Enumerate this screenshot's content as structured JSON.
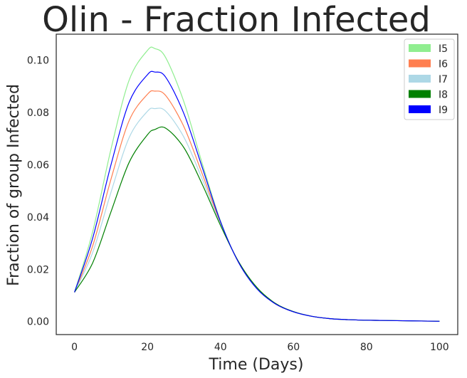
{
  "chart_data": {
    "type": "line",
    "title": "Olin - Fraction Infected",
    "xlabel": "Time (Days)",
    "ylabel": "Fraction of group Infected",
    "xlim": [
      -5,
      105
    ],
    "ylim": [
      -0.005,
      0.11
    ],
    "xticks": [
      0,
      20,
      40,
      60,
      80,
      100
    ],
    "yticks": [
      0.0,
      0.02,
      0.04,
      0.06,
      0.08,
      0.1
    ],
    "xtick_labels": [
      "0",
      "20",
      "40",
      "60",
      "80",
      "100"
    ],
    "ytick_labels": [
      "0.00",
      "0.02",
      "0.04",
      "0.06",
      "0.08",
      "0.10"
    ],
    "grid": false,
    "legend_position": "top-right",
    "x": [
      0,
      5,
      10,
      15,
      20,
      22,
      25,
      30,
      35,
      40,
      45,
      50,
      55,
      60,
      65,
      70,
      75,
      80,
      85,
      90,
      95,
      100
    ],
    "series": [
      {
        "name": "I5",
        "color": "#90ee90",
        "values": [
          0.0112,
          0.0345,
          0.066,
          0.0925,
          0.1038,
          0.1045,
          0.101,
          0.084,
          0.0605,
          0.0385,
          0.0225,
          0.0125,
          0.0068,
          0.0037,
          0.002,
          0.0011,
          0.0007,
          0.0005,
          0.0004,
          0.0003,
          0.0002,
          0.0001
        ]
      },
      {
        "name": "I6",
        "color": "#ff7f50",
        "values": [
          0.0112,
          0.029,
          0.0545,
          0.077,
          0.087,
          0.0882,
          0.0865,
          0.0745,
          0.0565,
          0.0378,
          0.0225,
          0.0126,
          0.0068,
          0.0037,
          0.002,
          0.0011,
          0.0007,
          0.0005,
          0.0004,
          0.0003,
          0.0002,
          0.0001
        ]
      },
      {
        "name": "I7",
        "color": "#add8e6",
        "values": [
          0.0112,
          0.0265,
          0.0495,
          0.0705,
          0.0805,
          0.0815,
          0.0805,
          0.0705,
          0.0545,
          0.0372,
          0.0226,
          0.0127,
          0.0069,
          0.0037,
          0.002,
          0.0011,
          0.0007,
          0.0005,
          0.0004,
          0.0003,
          0.0002,
          0.0001
        ]
      },
      {
        "name": "I8",
        "color": "#008000",
        "values": [
          0.0112,
          0.0225,
          0.042,
          0.061,
          0.0715,
          0.0735,
          0.074,
          0.0665,
          0.0525,
          0.0368,
          0.0228,
          0.013,
          0.007,
          0.0038,
          0.002,
          0.0011,
          0.0007,
          0.0005,
          0.0004,
          0.0003,
          0.0002,
          0.0001
        ]
      },
      {
        "name": "I9",
        "color": "#0000ff",
        "values": [
          0.0112,
          0.032,
          0.06,
          0.084,
          0.0945,
          0.0955,
          0.0935,
          0.0795,
          0.059,
          0.0382,
          0.0225,
          0.0125,
          0.0068,
          0.0037,
          0.002,
          0.0011,
          0.0007,
          0.0005,
          0.0004,
          0.0003,
          0.0002,
          0.0001
        ]
      }
    ]
  }
}
